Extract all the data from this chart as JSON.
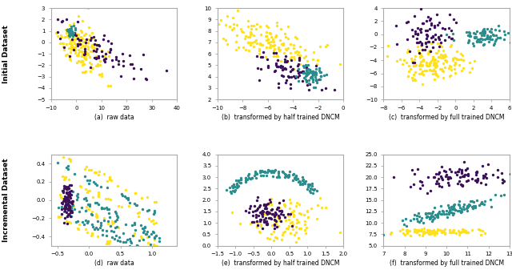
{
  "colors": {
    "yellow": "#FFE119",
    "teal": "#2A8C8C",
    "purple": "#3B1058"
  },
  "row_labels": [
    "Initial Dataset",
    "Incremental Dataset"
  ],
  "col_titles": [
    [
      "(a)  raw data",
      "(b)  transformed by half trained DNCM",
      "(c)  transformed by full trained DNCM"
    ],
    [
      "(d)  raw data",
      "(e)  transformed by half trained DNCM",
      "(f)  transformed by full trained DNCM"
    ]
  ],
  "seed": 42,
  "figsize": [
    6.4,
    3.37
  ],
  "dpi": 100,
  "background_color": "#ffffff",
  "spine_color": "#aaaaaa",
  "marker_size": 6
}
